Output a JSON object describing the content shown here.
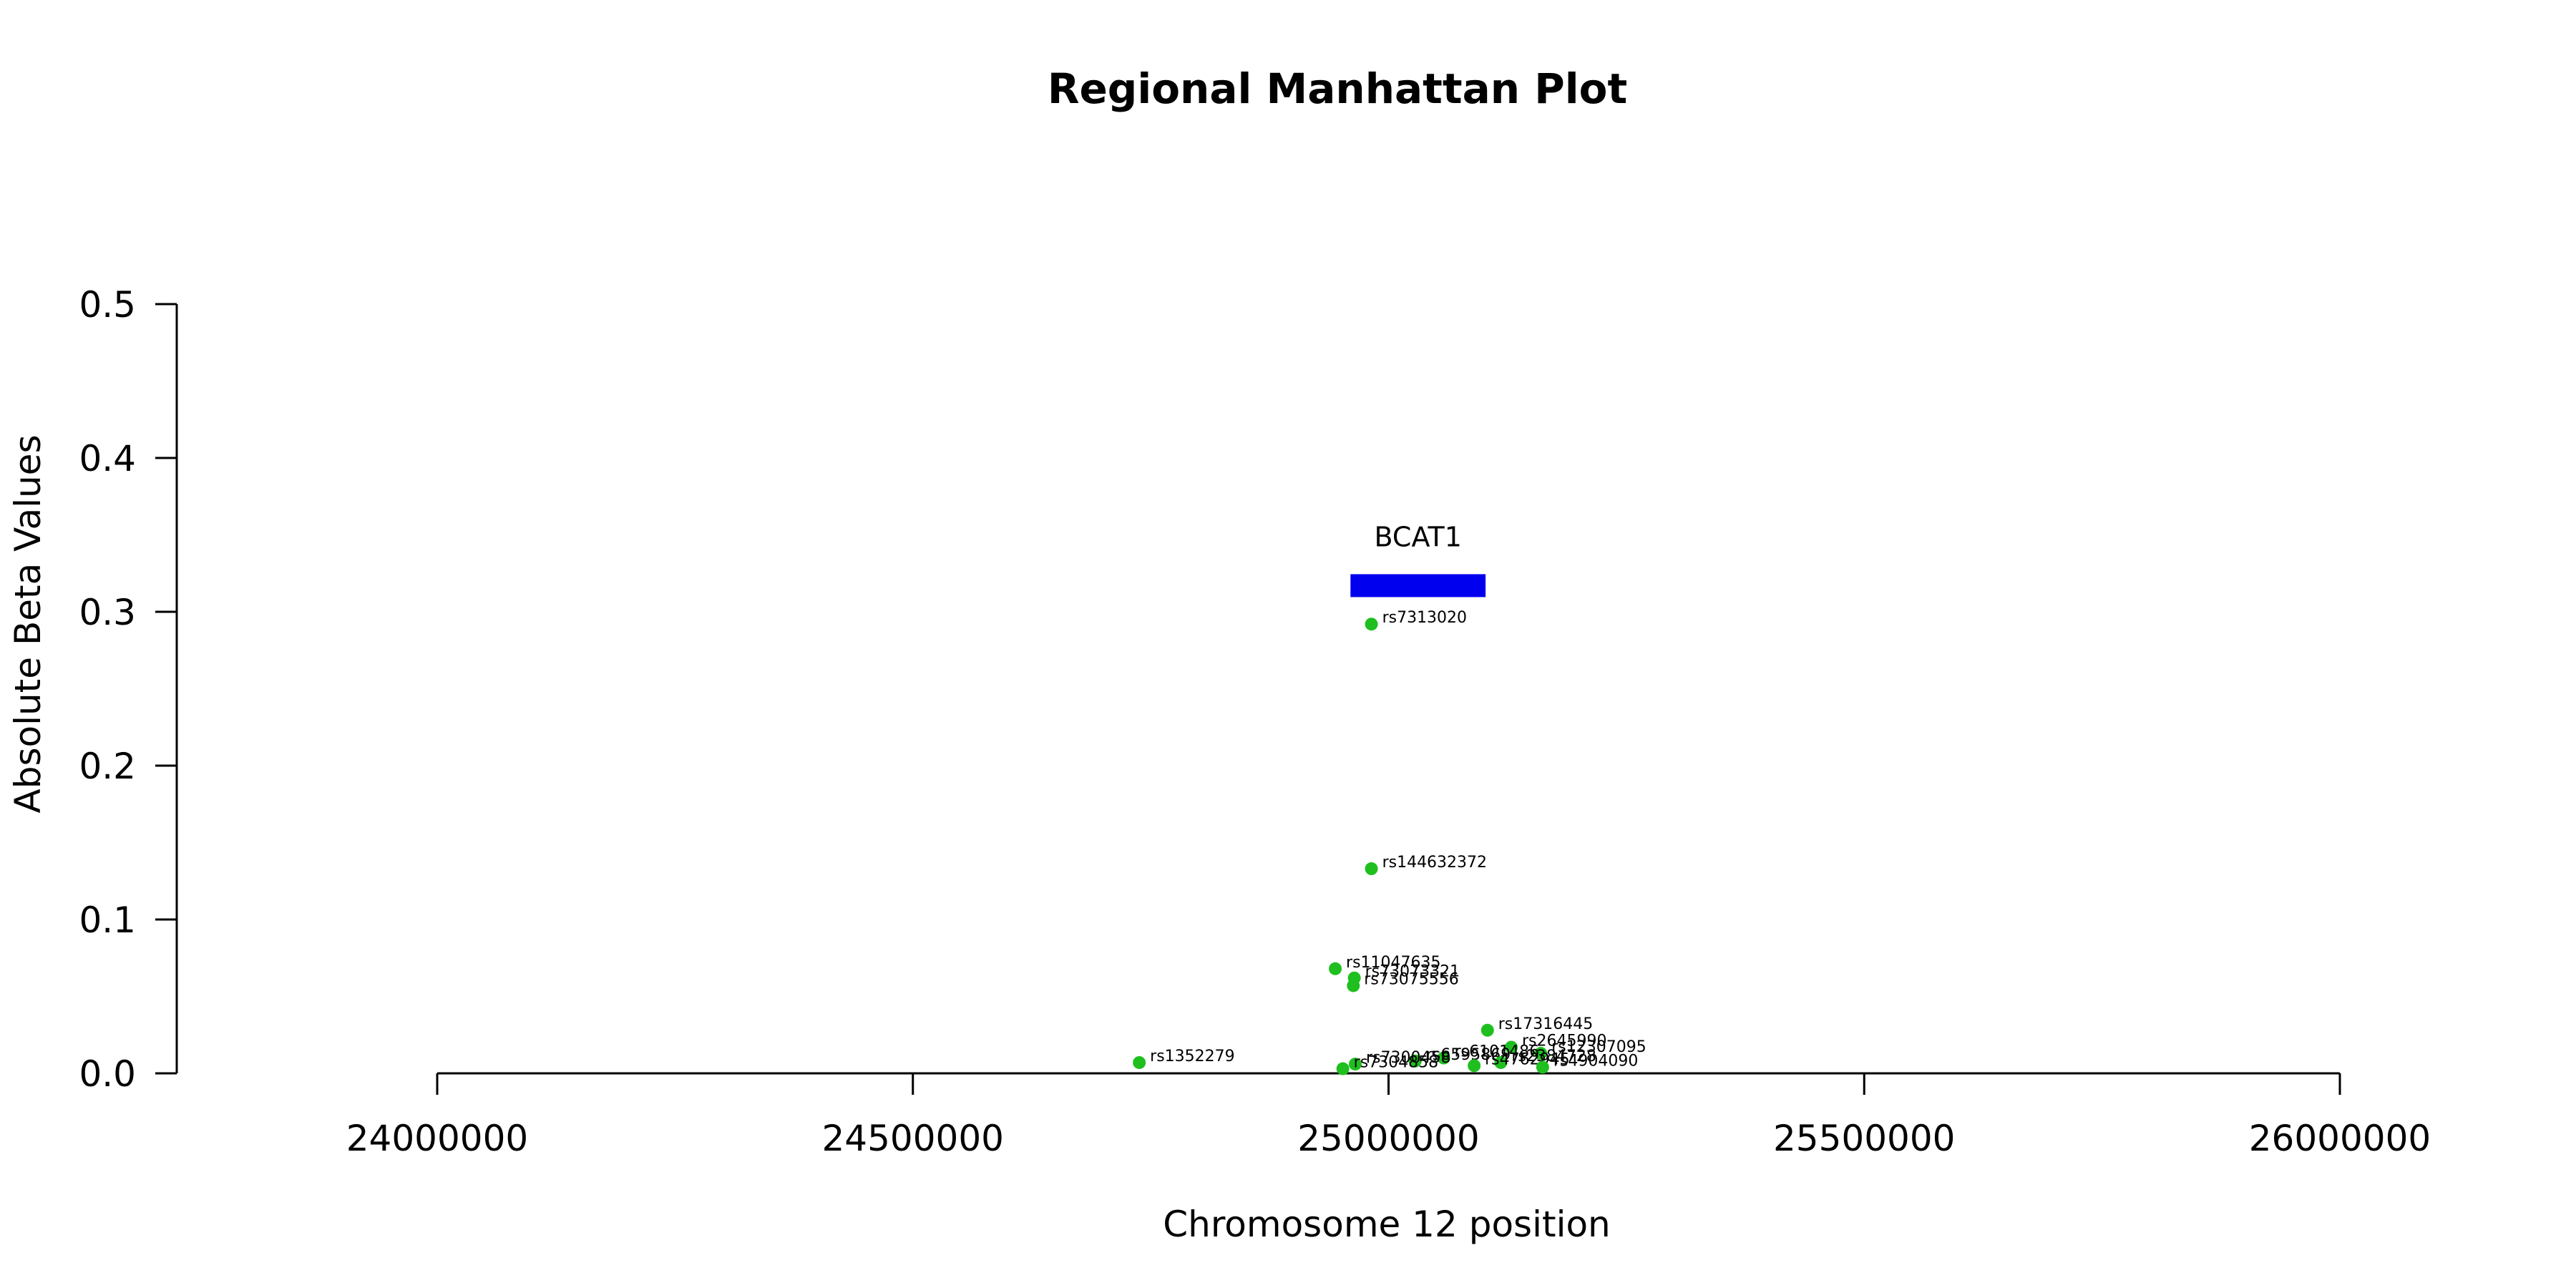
{
  "chart_data": {
    "type": "scatter",
    "title": "Regional Manhattan Plot",
    "xlabel": "Chromosome 12 position",
    "ylabel": "Absolute Beta Values",
    "xlim": [
      24000000,
      26000000
    ],
    "ylim": [
      0,
      0.5
    ],
    "x_ticks": [
      "24000000",
      "24500000",
      "25000000",
      "25500000",
      "26000000"
    ],
    "y_ticks": [
      "0.0",
      "0.1",
      "0.2",
      "0.3",
      "0.4",
      "0.5"
    ],
    "point_color": "#1fbf1f",
    "gene_color": "#0000ee",
    "genes": [
      {
        "name": "BCAT1",
        "start": 24960000,
        "end": 25102000,
        "y": 0.317
      }
    ],
    "points": [
      {
        "label": "rs7313020",
        "x": 24982000,
        "y": 0.292
      },
      {
        "label": "rs144632372",
        "x": 24982000,
        "y": 0.133
      },
      {
        "label": "rs11047635",
        "x": 24944000,
        "y": 0.068
      },
      {
        "label": "rs73073321",
        "x": 24964000,
        "y": 0.062
      },
      {
        "label": "rs73075556",
        "x": 24963000,
        "y": 0.057
      },
      {
        "label": "rs17316445",
        "x": 25104000,
        "y": 0.028
      },
      {
        "label": "rs2645990",
        "x": 25129000,
        "y": 0.017
      },
      {
        "label": "rs12307095",
        "x": 25160000,
        "y": 0.013
      },
      {
        "label": "rs1352279",
        "x": 24738000,
        "y": 0.007
      },
      {
        "label": "rs6101486",
        "x": 25058000,
        "y": 0.01
      },
      {
        "label": "rs6595869",
        "x": 25028000,
        "y": 0.008
      },
      {
        "label": "rs7300458",
        "x": 24965000,
        "y": 0.006
      },
      {
        "label": "rs7304858",
        "x": 24952000,
        "y": 0.003
      },
      {
        "label": "rs2384728",
        "x": 25118000,
        "y": 0.007
      },
      {
        "label": "rs4762945",
        "x": 25090000,
        "y": 0.005
      },
      {
        "label": "rs4904090",
        "x": 25162000,
        "y": 0.004
      }
    ]
  }
}
